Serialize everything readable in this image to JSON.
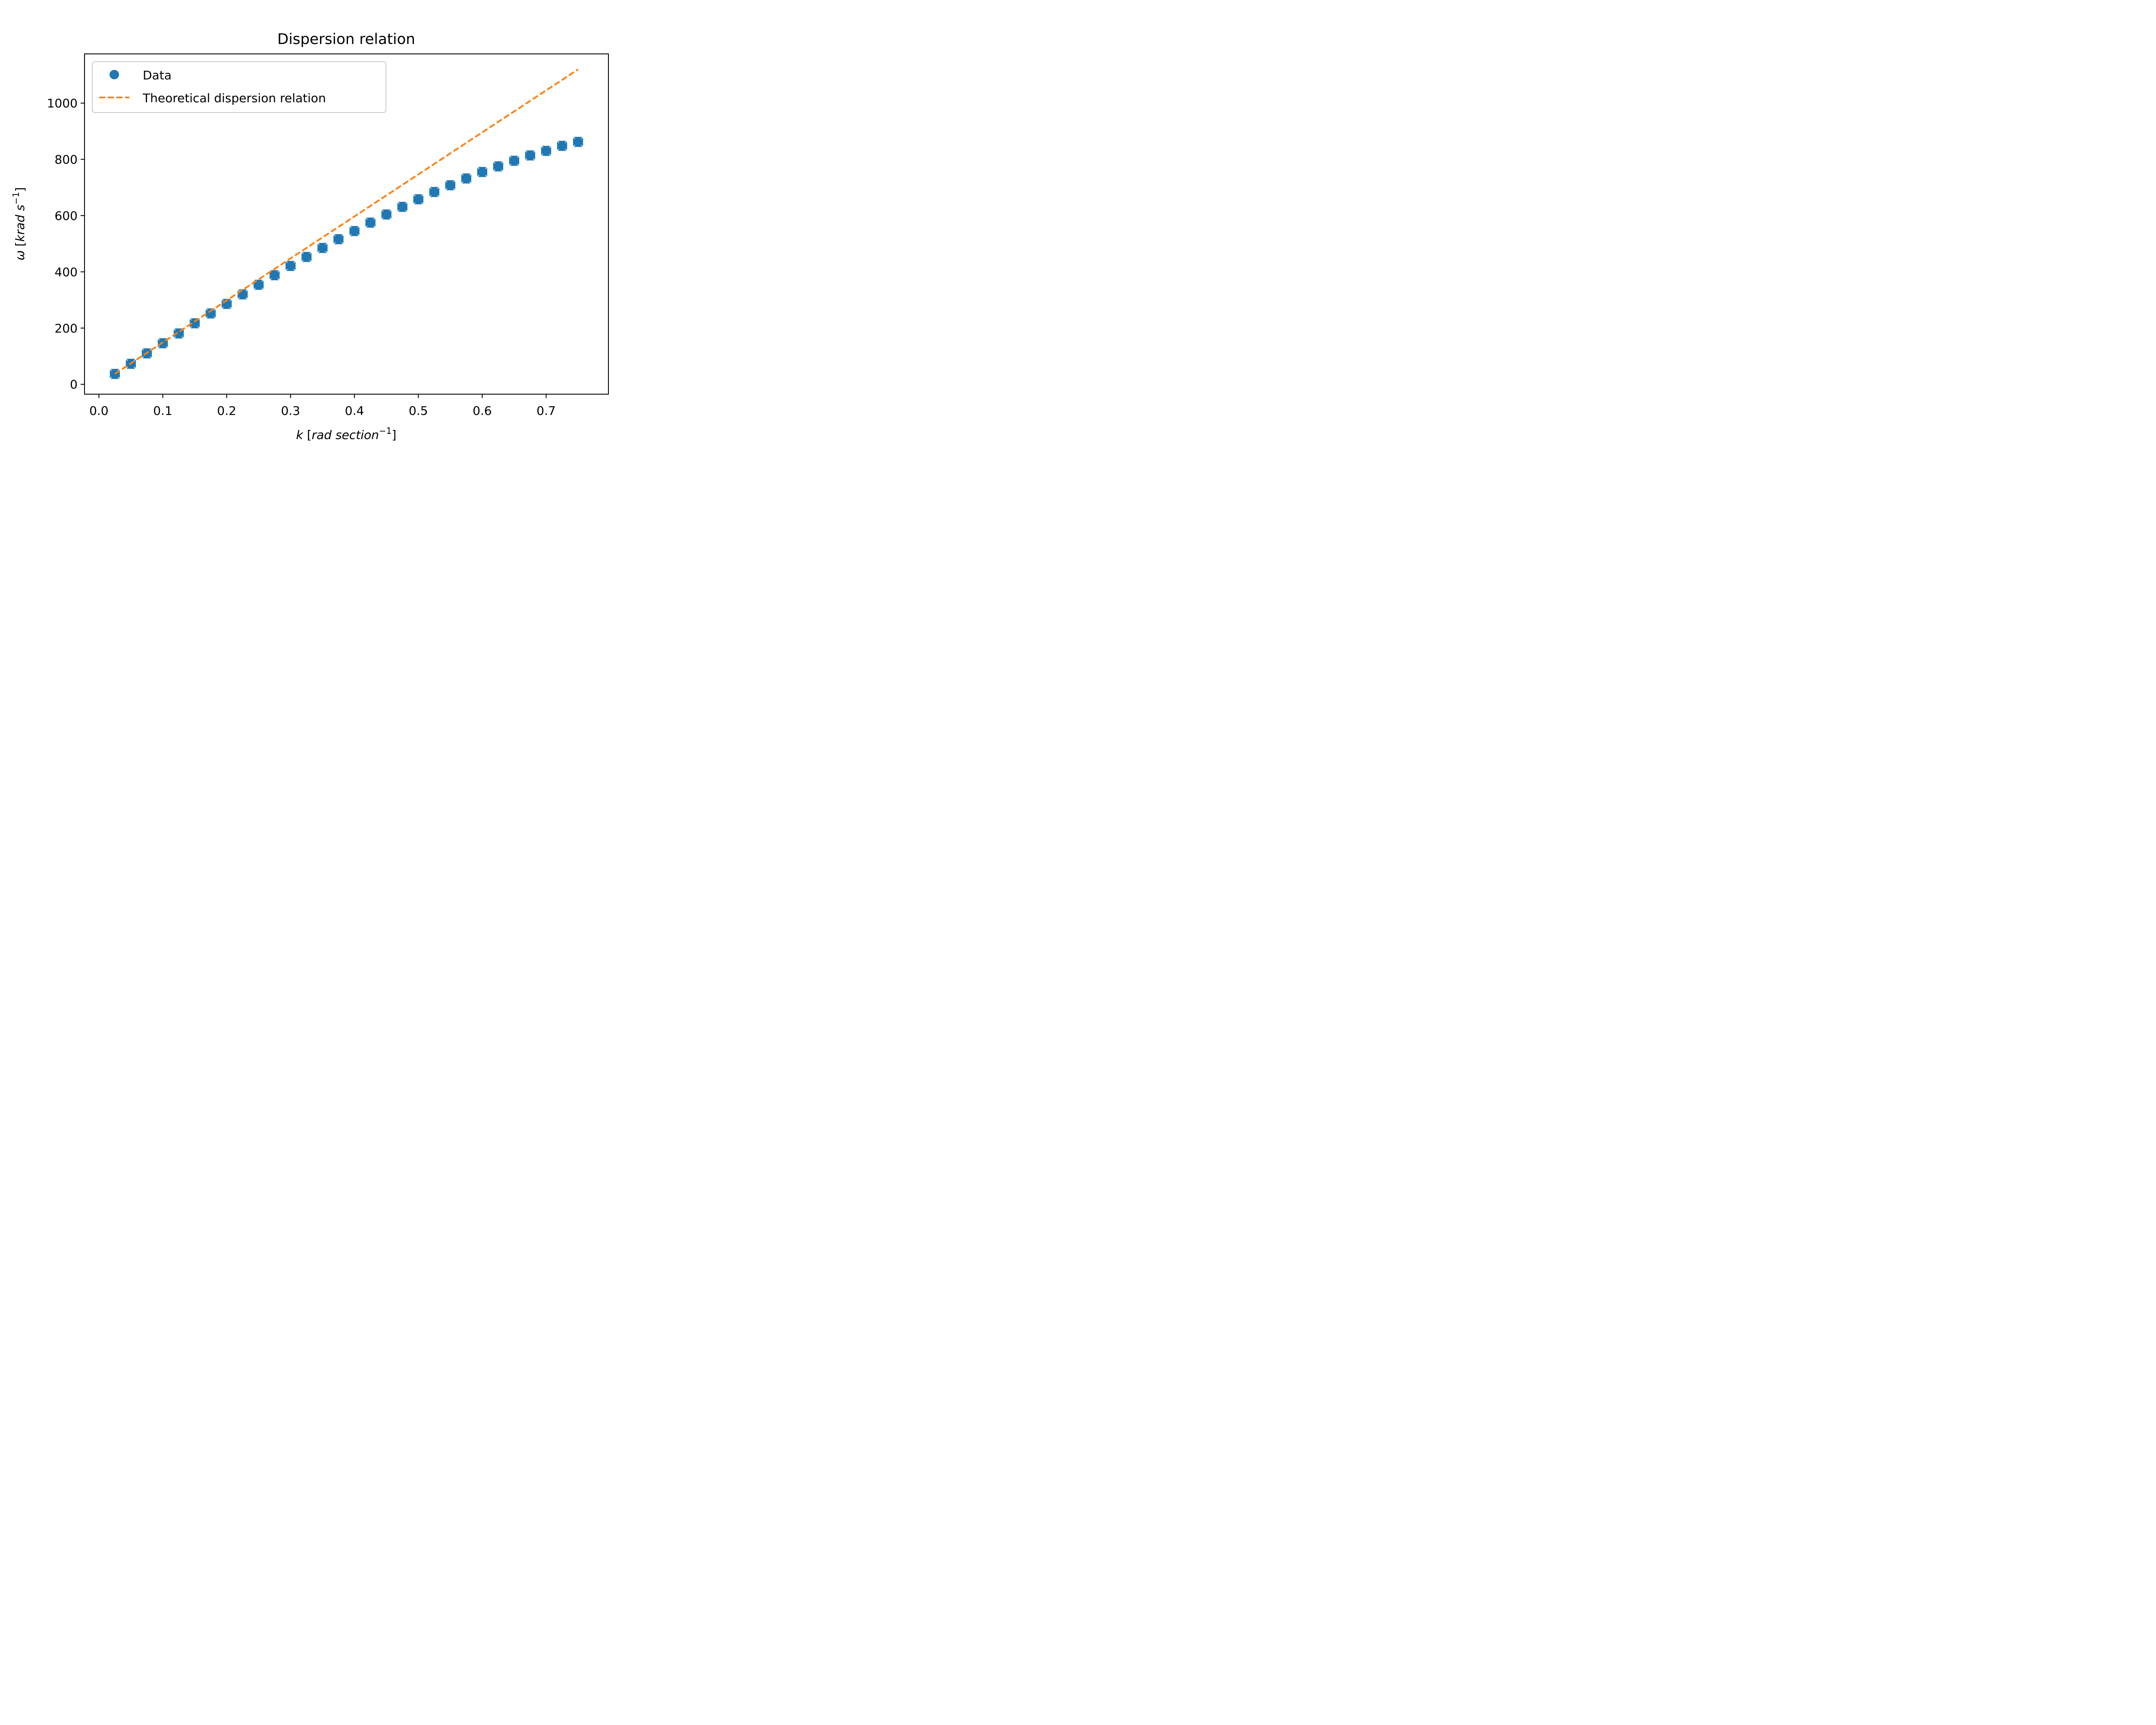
{
  "chart_data": {
    "type": "scatter",
    "title": "Dispersion relation",
    "xlabel": {
      "var": "k",
      "unit": "rad section",
      "exp": "−1"
    },
    "ylabel": {
      "var": "ω",
      "unit": "krad s",
      "exp": "−1"
    },
    "xlim": [
      -0.0225,
      0.7975
    ],
    "ylim": [
      -35,
      1175
    ],
    "x_ticks": [
      "0.0",
      "0.1",
      "0.2",
      "0.3",
      "0.4",
      "0.5",
      "0.6",
      "0.7"
    ],
    "x_tick_values": [
      0.0,
      0.1,
      0.2,
      0.3,
      0.4,
      0.5,
      0.6,
      0.7
    ],
    "y_ticks": [
      "0",
      "200",
      "400",
      "600",
      "800",
      "1000"
    ],
    "y_tick_values": [
      0,
      200,
      400,
      600,
      800,
      1000
    ],
    "legend_position": "top-left",
    "series": [
      {
        "name": "Data",
        "style": "markers with x and y error bars",
        "color": "#1f77b4",
        "x": [
          0.025,
          0.05,
          0.075,
          0.1,
          0.125,
          0.15,
          0.175,
          0.2,
          0.225,
          0.25,
          0.275,
          0.3,
          0.325,
          0.35,
          0.375,
          0.4,
          0.425,
          0.45,
          0.475,
          0.5,
          0.525,
          0.55,
          0.575,
          0.6,
          0.625,
          0.65,
          0.675,
          0.7,
          0.725,
          0.75
        ],
        "y": [
          37,
          73,
          110,
          146,
          181,
          217,
          252,
          286,
          320,
          354,
          388,
          421,
          453,
          485,
          516,
          545,
          575,
          604,
          631,
          658,
          684,
          708,
          732,
          755,
          775,
          795,
          814,
          830,
          848,
          862
        ],
        "x_error": 0.007,
        "y_error": 16
      },
      {
        "name": "Theoretical dispersion relation",
        "style": "dashed line",
        "color": "#ff7f0e",
        "x": [
          0.025,
          0.75
        ],
        "y": [
          37,
          1120
        ]
      }
    ]
  }
}
